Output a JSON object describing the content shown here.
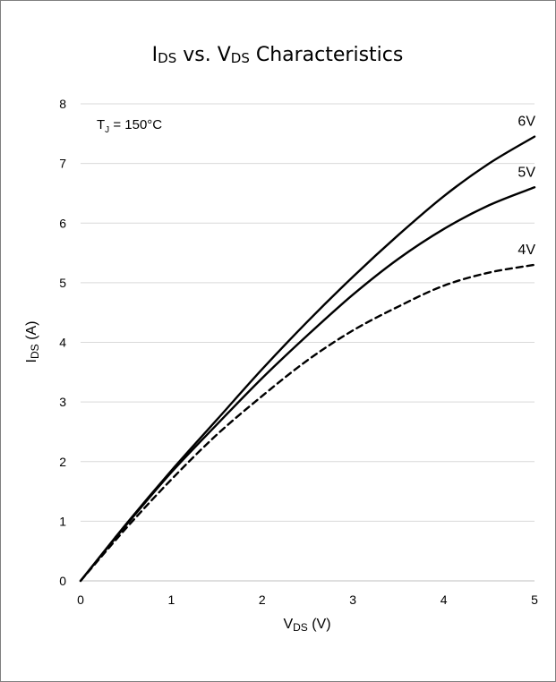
{
  "chart_data": {
    "type": "line",
    "title": {
      "main1": "I",
      "sub1": "DS",
      "mid": " vs. V",
      "sub2": "DS",
      "tail": " Characteristics"
    },
    "xlabel": {
      "main": "V",
      "sub": "DS",
      "tail": " (V)"
    },
    "ylabel": {
      "main": "I",
      "sub": "DS",
      "tail": " (A)"
    },
    "xlim": [
      0,
      5
    ],
    "ylim": [
      0,
      8
    ],
    "xticks": [
      0,
      1,
      2,
      3,
      4,
      5
    ],
    "yticks": [
      0,
      1,
      2,
      3,
      4,
      5,
      6,
      7,
      8
    ],
    "grid": "horizontal",
    "annotation": {
      "main": "T",
      "sub": "J",
      "tail": " = 150°C"
    },
    "series": [
      {
        "name": "6V",
        "style": "solid",
        "color": "#000000",
        "x": [
          0,
          0.5,
          1,
          1.5,
          2,
          2.5,
          3,
          3.5,
          4,
          4.5,
          5
        ],
        "y": [
          0,
          0.95,
          1.85,
          2.7,
          3.55,
          4.35,
          5.1,
          5.8,
          6.45,
          7.0,
          7.45
        ]
      },
      {
        "name": "5V",
        "style": "solid",
        "color": "#000000",
        "x": [
          0,
          0.5,
          1,
          1.5,
          2,
          2.5,
          3,
          3.5,
          4,
          4.5,
          5
        ],
        "y": [
          0,
          0.93,
          1.82,
          2.62,
          3.4,
          4.12,
          4.8,
          5.4,
          5.9,
          6.3,
          6.6
        ]
      },
      {
        "name": "4V",
        "style": "dashed",
        "color": "#000000",
        "x": [
          0,
          0.5,
          1,
          1.5,
          2,
          2.5,
          3,
          3.5,
          4,
          4.5,
          5
        ],
        "y": [
          0,
          0.88,
          1.7,
          2.45,
          3.1,
          3.7,
          4.2,
          4.6,
          4.95,
          5.17,
          5.3
        ]
      }
    ]
  }
}
